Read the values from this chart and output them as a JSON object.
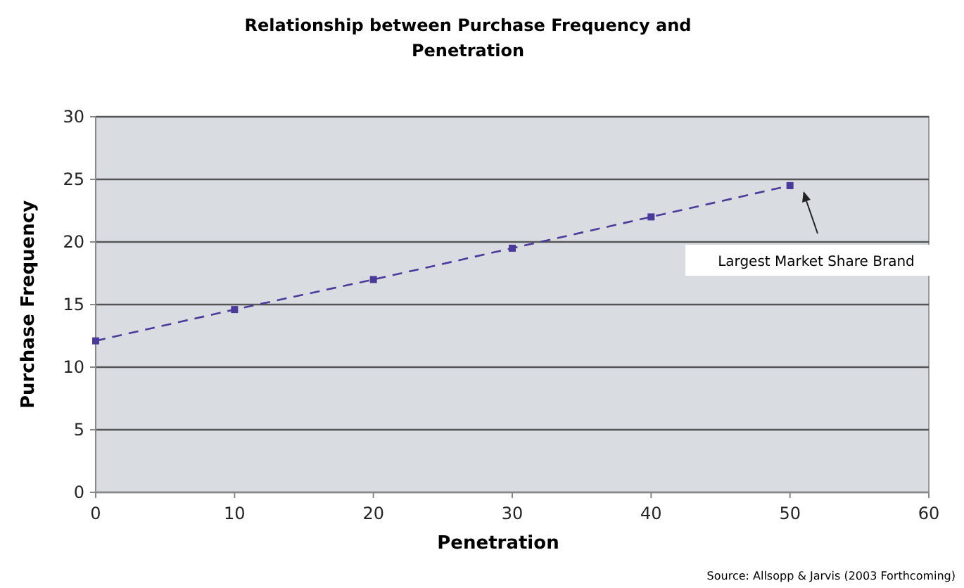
{
  "chart_data": {
    "type": "line",
    "title": "Relationship between Purchase Frequency and Penetration",
    "xlabel": "Penetration",
    "ylabel": "Purchase Frequency",
    "x": [
      0,
      10,
      20,
      30,
      40,
      50
    ],
    "series": [
      {
        "color": "#4b3a9a",
        "values": [
          12.1,
          14.6,
          17.0,
          19.5,
          22.0,
          24.5
        ]
      }
    ],
    "xlim": [
      0,
      60
    ],
    "xticks": [
      0,
      10,
      20,
      30,
      40,
      50,
      60
    ],
    "ylim": [
      0,
      30
    ],
    "yticks": [
      0,
      5,
      10,
      15,
      20,
      25,
      30
    ],
    "grid": "y",
    "marker": "square",
    "line_style": "dashed",
    "annotations": [
      "Largest Market Share Brand",
      "Source: Allsopp & Jarvis (2003 Forthcoming)"
    ]
  }
}
